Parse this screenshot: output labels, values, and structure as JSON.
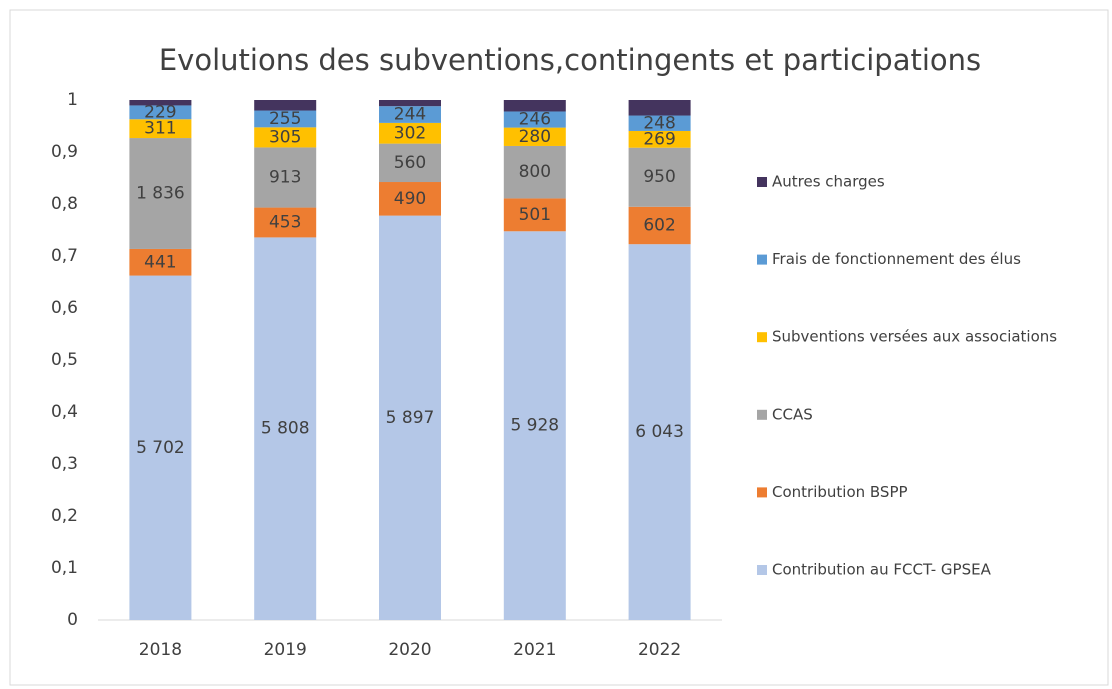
{
  "chart_data": {
    "type": "bar",
    "stacking": "percent",
    "title": "Evolutions des subventions,contingents et participations",
    "categories": [
      "2018",
      "2019",
      "2020",
      "2021",
      "2022"
    ],
    "series": [
      {
        "name": "Contribution au FCCT- GPSEA",
        "color": "#b4c7e7",
        "values": [
          5702,
          5808,
          5897,
          5928,
          6043
        ],
        "value_labels": [
          "5 702",
          "5 808",
          "5 897",
          "5 928",
          "6 043"
        ]
      },
      {
        "name": "Contribution BSPP",
        "color": "#ed7d31",
        "values": [
          441,
          453,
          490,
          501,
          602
        ]
      },
      {
        "name": "CCAS",
        "color": "#a5a5a5",
        "values": [
          1836,
          913,
          560,
          800,
          950
        ],
        "value_labels": [
          "1 836",
          "913",
          "560",
          "800",
          "950"
        ]
      },
      {
        "name": "Subventions versées aux associations",
        "color": "#ffc000",
        "values": [
          311,
          305,
          302,
          280,
          269
        ]
      },
      {
        "name": "Frais de fonctionnement des élus",
        "color": "#5b9bd5",
        "values": [
          229,
          255,
          244,
          246,
          248
        ]
      },
      {
        "name": "Autres charges",
        "color": "#44345e",
        "values": [
          90,
          160,
          90,
          175,
          250
        ],
        "show_labels": false
      }
    ],
    "ylim": [
      0,
      1
    ],
    "yticks": [
      0,
      {
        "value": 0.1,
        "label": "0,1"
      },
      {
        "value": 0.2,
        "label": "0,2"
      },
      {
        "value": 0.3,
        "label": "0,3"
      },
      {
        "value": 0.4,
        "label": "0,4"
      },
      {
        "value": 0.5,
        "label": "0,5"
      },
      {
        "value": 0.6,
        "label": "0,6"
      },
      {
        "value": 0.7,
        "label": "0,7"
      },
      {
        "value": 0.8,
        "label": "0,8"
      },
      {
        "value": 0.9,
        "label": "0,9"
      },
      1
    ],
    "grid": false,
    "legend": "right"
  }
}
